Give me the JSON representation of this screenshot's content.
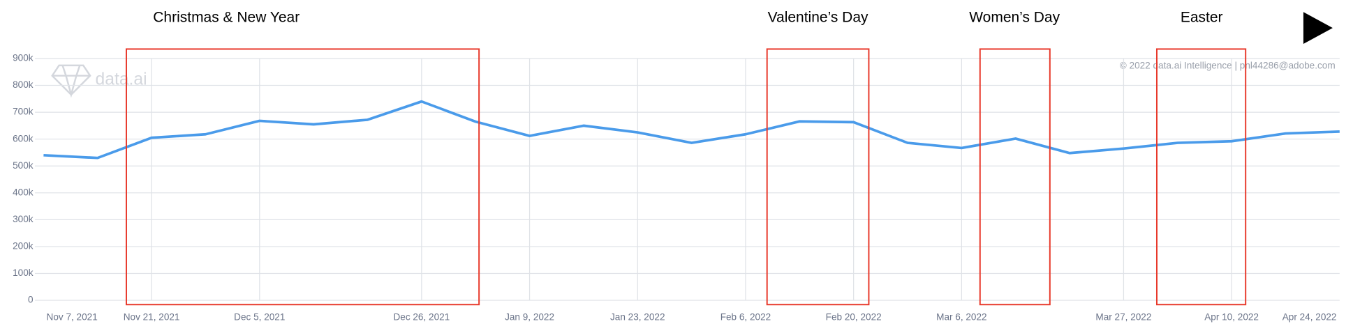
{
  "chart_data": {
    "type": "line",
    "categories": [
      "Nov 7, 2021",
      null,
      "Nov 21, 2021",
      null,
      "Dec 5, 2021",
      null,
      null,
      "Dec 26, 2021",
      null,
      "Jan 9, 2022",
      null,
      "Jan 23, 2022",
      null,
      "Feb 6, 2022",
      null,
      "Feb 20, 2022",
      null,
      "Mar 6, 2022",
      null,
      null,
      "Mar 27, 2022",
      null,
      "Apr 10, 2022",
      null,
      "Apr 24, 2022"
    ],
    "series": [
      {
        "color": "#4a9bea",
        "values": [
          540000,
          530000,
          605000,
          618000,
          668000,
          655000,
          672000,
          740000,
          665000,
          612000,
          650000,
          625000,
          586000,
          618000,
          666000,
          663000,
          586000,
          567000,
          602000,
          548000,
          565000,
          586000,
          592000,
          621000,
          628000
        ]
      }
    ],
    "ylim": [
      0,
      900000
    ],
    "yticks": [
      0,
      {
        "value": 100000,
        "label": "100k"
      },
      {
        "value": 200000,
        "label": "200k"
      },
      {
        "value": 300000,
        "label": "300k"
      },
      {
        "value": 400000,
        "label": "400k"
      },
      {
        "value": 500000,
        "label": "500k"
      },
      {
        "value": 600000,
        "label": "600k"
      },
      {
        "value": 700000,
        "label": "700k"
      },
      {
        "value": 800000,
        "label": "800k"
      },
      {
        "value": 900000,
        "label": "900k"
      }
    ],
    "grid": true,
    "annotations": [
      "Christmas & New Year",
      "Valentine’s Day",
      "Women’s Day",
      "Easter"
    ],
    "watermark": "data.ai",
    "copyright": "© 2022 data.ai Intelligence | pnl44286@adobe.com"
  }
}
